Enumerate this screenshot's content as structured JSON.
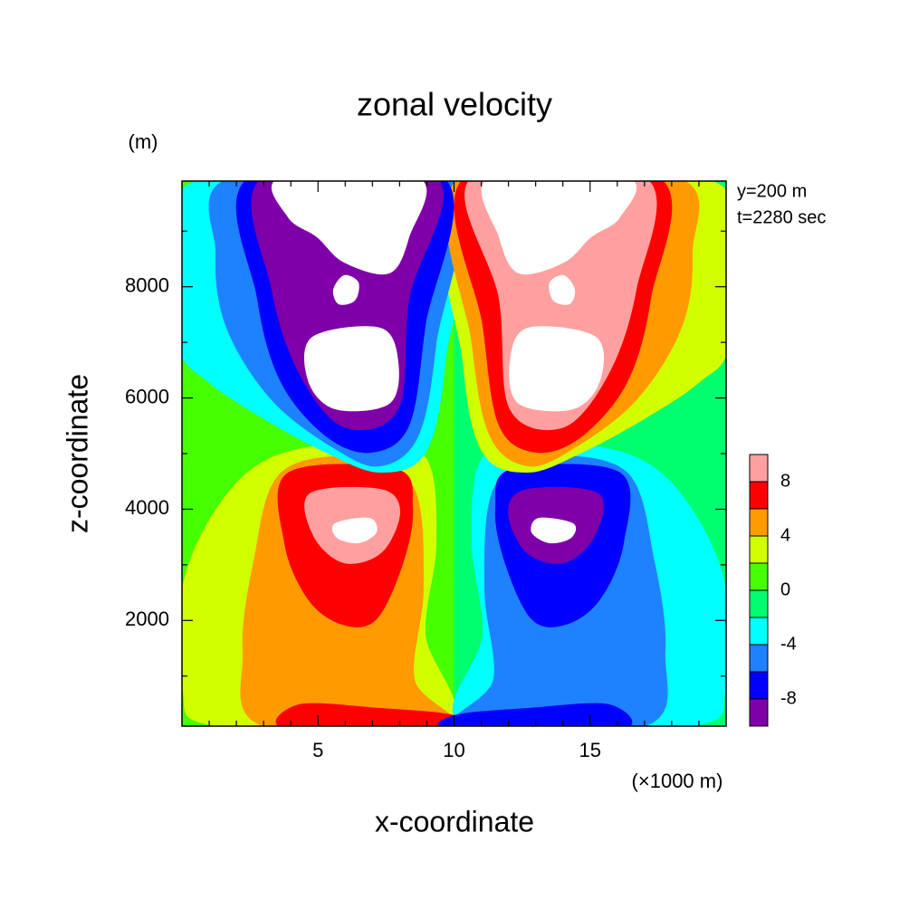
{
  "chart_data": {
    "type": "contour",
    "title": "zonal velocity",
    "xlabel": "x-coordinate",
    "ylabel": "z-coordinate",
    "xunit": "(×1000 m)",
    "yunit": "(m)",
    "annotations": [
      "y=200 m",
      "t=2280 sec"
    ],
    "xlim": [
      0,
      20
    ],
    "ylim": [
      100,
      9900
    ],
    "xticks": [
      5,
      10,
      15
    ],
    "yticks": [
      2000,
      4000,
      6000,
      8000
    ],
    "xminorticks": [
      1,
      2,
      3,
      4,
      6,
      7,
      8,
      9,
      11,
      12,
      13,
      14,
      16,
      17,
      18,
      19
    ],
    "yminorticks": [
      1000,
      3000,
      5000,
      7000,
      9000
    ],
    "levels": [
      -10,
      -8,
      -6,
      -4,
      -2,
      0,
      2,
      4,
      6,
      8,
      10
    ],
    "colors": [
      "#7f00a8",
      "#0000ff",
      "#1e82ff",
      "#00ffff",
      "#00ff6e",
      "#46ff00",
      "#d2ff00",
      "#ff9b00",
      "#ff0000",
      "#ffa0a0"
    ],
    "colorbar_ticks": [
      -8,
      -4,
      0,
      4,
      8
    ]
  }
}
